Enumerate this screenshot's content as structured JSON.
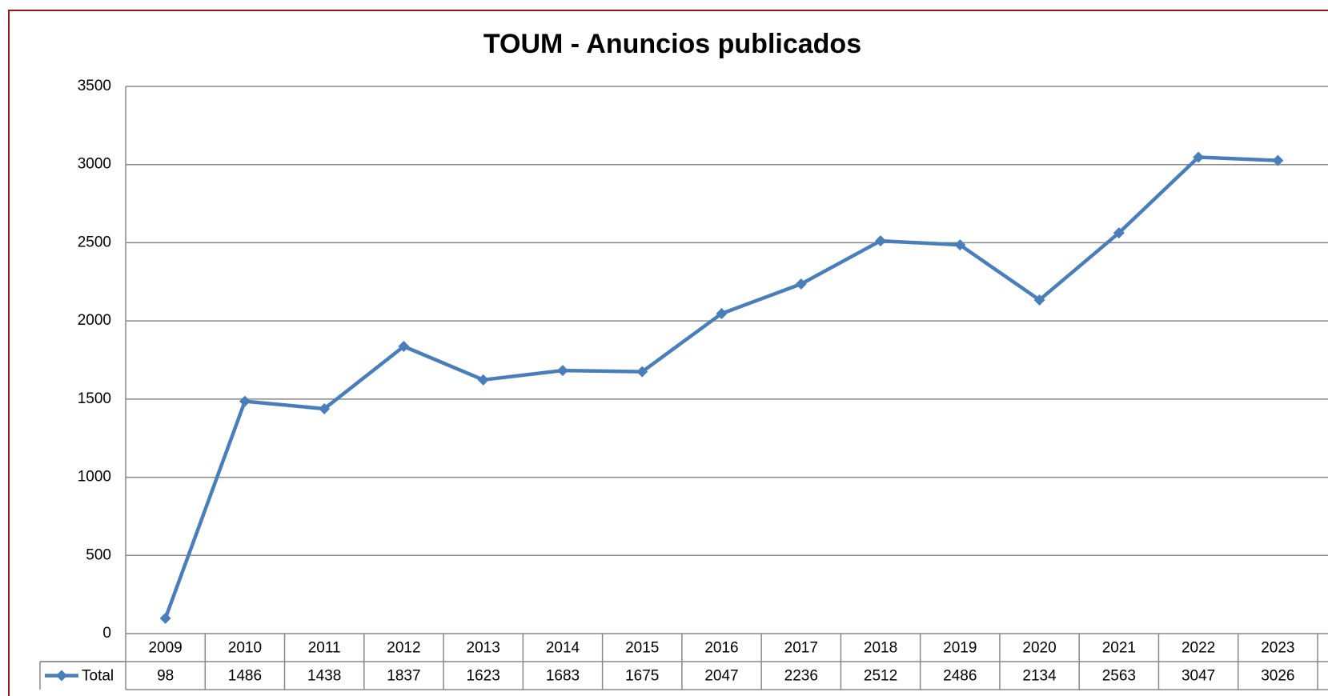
{
  "chart_data": {
    "type": "line",
    "title": "TOUM - Anuncios publicados",
    "categories": [
      "2009",
      "2010",
      "2011",
      "2012",
      "2013",
      "2014",
      "2015",
      "2016",
      "2017",
      "2018",
      "2019",
      "2020",
      "2021",
      "2022",
      "2023"
    ],
    "series": [
      {
        "name": "Total",
        "color": "#4a7ebb",
        "values": [
          98,
          1486,
          1438,
          1837,
          1623,
          1683,
          1675,
          2047,
          2236,
          2512,
          2486,
          2134,
          2563,
          3047,
          3026
        ]
      }
    ],
    "ylim": [
      0,
      3500
    ],
    "yticks": [
      0,
      500,
      1000,
      1500,
      2000,
      2500,
      3000,
      3500
    ],
    "grid": true,
    "data_table": true
  }
}
